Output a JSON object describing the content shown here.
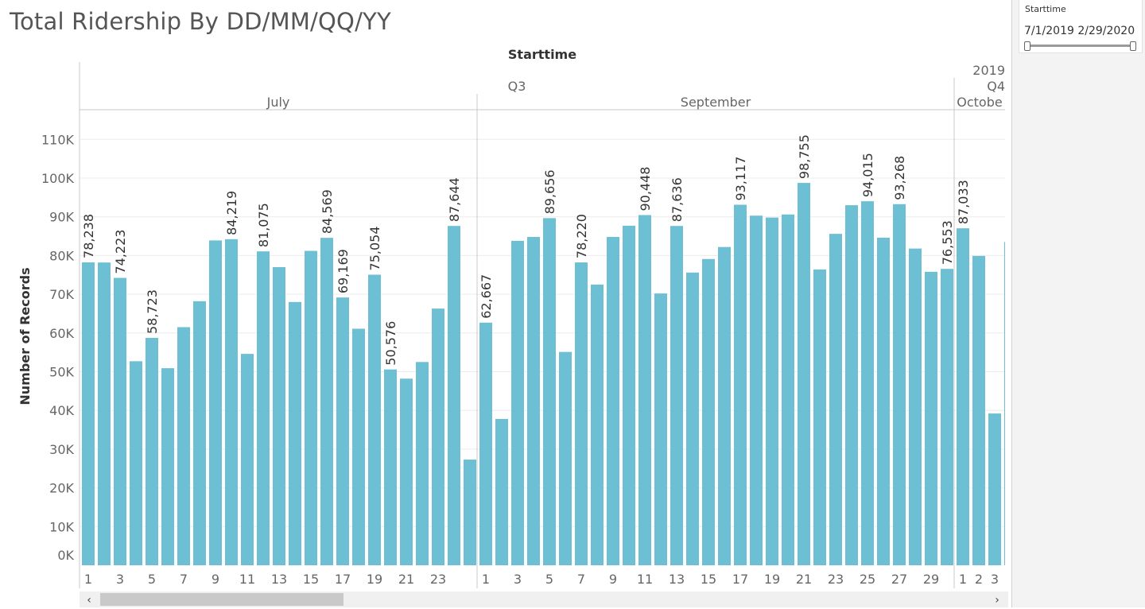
{
  "page": {
    "title": "Total Ridership By DD/MM/QQ/YY"
  },
  "filter": {
    "title": "Starttime",
    "range_text": "7/1/2019 2/29/2020"
  },
  "colors": {
    "bar": "#6dbfd4",
    "grid": "#ececec",
    "divider": "#c8c8c8",
    "text": "#555555"
  },
  "chart_data": {
    "type": "bar",
    "title": "Total Ridership By DD/MM/QQ/YY",
    "column_header": "Starttime",
    "ylabel": "Number of Records",
    "ylim": [
      0,
      110000
    ],
    "yticks": [
      {
        "value": 0,
        "label": "0K"
      },
      {
        "value": 10000,
        "label": "10K"
      },
      {
        "value": 20000,
        "label": "20K"
      },
      {
        "value": 30000,
        "label": "30K"
      },
      {
        "value": 40000,
        "label": "40K"
      },
      {
        "value": 50000,
        "label": "50K"
      },
      {
        "value": 60000,
        "label": "60K"
      },
      {
        "value": 70000,
        "label": "70K"
      },
      {
        "value": 80000,
        "label": "80K"
      },
      {
        "value": 90000,
        "label": "90K"
      },
      {
        "value": 100000,
        "label": "100K"
      },
      {
        "value": 110000,
        "label": "110K"
      }
    ],
    "grid": true,
    "header_labels": {
      "year": "2019",
      "q3": "Q3",
      "q4": "Q4",
      "months": [
        "July",
        "September",
        "Octobe"
      ]
    },
    "segments": [
      {
        "month": "July",
        "days": [
          1,
          2,
          3,
          4,
          5,
          6,
          7,
          8,
          9,
          10,
          11,
          12,
          13,
          14,
          15,
          16,
          17,
          18,
          19,
          20,
          21,
          22,
          23,
          24,
          25
        ],
        "values": [
          78238,
          78200,
          74223,
          52700,
          58723,
          50900,
          61500,
          68200,
          83900,
          84219,
          54600,
          81075,
          77000,
          68000,
          81200,
          84569,
          69169,
          61100,
          75054,
          50576,
          48200,
          52500,
          66300,
          87644,
          27300
        ],
        "labels": [
          "78,238",
          "",
          "74,223",
          "",
          "58,723",
          "",
          "",
          "",
          "",
          "84,219",
          "",
          "81,075",
          "",
          "",
          "",
          "84,569",
          "69,169",
          "",
          "75,054",
          "50,576",
          "",
          "",
          "",
          "87,644",
          ""
        ],
        "tick_labels": [
          "1",
          "",
          "3",
          "",
          "5",
          "",
          "7",
          "",
          "9",
          "",
          "11",
          "",
          "13",
          "",
          "15",
          "",
          "17",
          "",
          "19",
          "",
          "21",
          "",
          "23",
          "",
          ""
        ]
      },
      {
        "month": "September",
        "days": [
          1,
          2,
          3,
          4,
          5,
          6,
          7,
          8,
          9,
          10,
          11,
          12,
          13,
          14,
          15,
          16,
          17,
          18,
          19,
          20,
          21,
          22,
          23,
          24,
          25,
          26,
          27,
          28,
          29,
          30
        ],
        "values": [
          62667,
          37800,
          83800,
          84800,
          89656,
          55100,
          78220,
          72500,
          84800,
          87700,
          90448,
          70200,
          87636,
          75600,
          79100,
          82200,
          93117,
          90300,
          89800,
          90600,
          98755,
          76400,
          85600,
          93000,
          94015,
          84600,
          93268,
          81800,
          75800,
          76553
        ],
        "labels": [
          "62,667",
          "",
          "",
          "",
          "89,656",
          "",
          "78,220",
          "",
          "",
          "",
          "90,448",
          "",
          "87,636",
          "",
          "",
          "",
          "93,117",
          "",
          "",
          "",
          "98,755",
          "",
          "",
          "",
          "94,015",
          "",
          "93,268",
          "",
          "",
          "76,553"
        ],
        "tick_labels": [
          "1",
          "",
          "3",
          "",
          "5",
          "",
          "7",
          "",
          "9",
          "",
          "11",
          "",
          "13",
          "",
          "15",
          "",
          "17",
          "",
          "19",
          "",
          "21",
          "",
          "23",
          "",
          "25",
          "",
          "27",
          "",
          "29",
          ""
        ]
      },
      {
        "month": "Octobe",
        "days": [
          1,
          2,
          3,
          4
        ],
        "values": [
          87033,
          79900,
          39200,
          83500
        ],
        "labels": [
          "87,033",
          "",
          "",
          ""
        ],
        "tick_labels": [
          "1",
          "2",
          "3",
          ""
        ]
      }
    ]
  }
}
